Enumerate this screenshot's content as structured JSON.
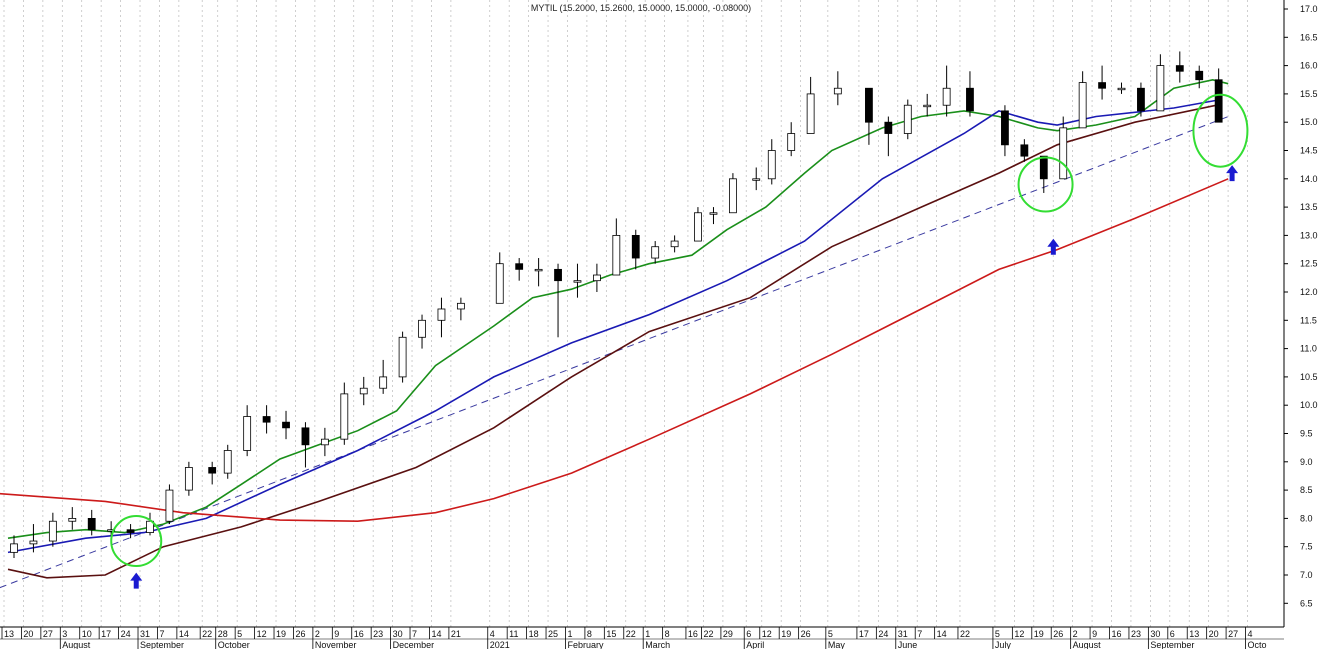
{
  "chart_data": {
    "type": "candlestick",
    "title": "MYTIL (15.2000, 15.2600, 15.0000, 15.0000, -0.08000)",
    "ylim": [
      6.3,
      17.1
    ],
    "y_ticks": [
      6.5,
      7.0,
      7.5,
      8.0,
      8.5,
      9.0,
      9.5,
      10.0,
      10.5,
      11.0,
      11.5,
      12.0,
      12.5,
      13.0,
      13.5,
      14.0,
      14.5,
      15.0,
      15.5,
      16.0,
      16.5,
      17.0
    ],
    "y_axis_position": "right",
    "grid": "vertical dotted",
    "x_ticks": [
      [
        "2020-07-13",
        "13"
      ],
      [
        "2020-07-20",
        "20"
      ],
      [
        "2020-07-27",
        "27"
      ],
      [
        "2020-08-03",
        "3"
      ],
      [
        "2020-08-10",
        "10"
      ],
      [
        "2020-08-17",
        "17"
      ],
      [
        "2020-08-24",
        "24"
      ],
      [
        "2020-08-31",
        "31"
      ],
      [
        "2020-09-07",
        "7"
      ],
      [
        "2020-09-14",
        "14"
      ],
      [
        "2020-09-22",
        "22"
      ],
      [
        "2020-09-28",
        "28"
      ],
      [
        "2020-10-05",
        "5"
      ],
      [
        "2020-10-12",
        "12"
      ],
      [
        "2020-10-19",
        "19"
      ],
      [
        "2020-10-26",
        "26"
      ],
      [
        "2020-11-02",
        "2"
      ],
      [
        "2020-11-09",
        "9"
      ],
      [
        "2020-11-16",
        "16"
      ],
      [
        "2020-11-23",
        "23"
      ],
      [
        "2020-11-30",
        "30"
      ],
      [
        "2020-12-07",
        "7"
      ],
      [
        "2020-12-14",
        "14"
      ],
      [
        "2020-12-21",
        "21"
      ],
      [
        "2021-01-04",
        "4"
      ],
      [
        "2021-01-11",
        "11"
      ],
      [
        "2021-01-18",
        "18"
      ],
      [
        "2021-01-25",
        "25"
      ],
      [
        "2021-02-01",
        "1"
      ],
      [
        "2021-02-08",
        "8"
      ],
      [
        "2021-02-15",
        "15"
      ],
      [
        "2021-02-22",
        "22"
      ],
      [
        "2021-03-01",
        "1"
      ],
      [
        "2021-03-08",
        "8"
      ],
      [
        "2021-03-16",
        "16"
      ],
      [
        "2021-03-22",
        "22"
      ],
      [
        "2021-03-29",
        "29"
      ],
      [
        "2021-04-06",
        "6"
      ],
      [
        "2021-04-12",
        "12"
      ],
      [
        "2021-04-19",
        "19"
      ],
      [
        "2021-04-26",
        "26"
      ],
      [
        "2021-05-05",
        "5"
      ],
      [
        "2021-05-17",
        "17"
      ],
      [
        "2021-05-24",
        "24"
      ],
      [
        "2021-05-31",
        "31"
      ],
      [
        "2021-06-07",
        "7"
      ],
      [
        "2021-06-14",
        "14"
      ],
      [
        "2021-06-22",
        "22"
      ],
      [
        "2021-07-05",
        "5"
      ],
      [
        "2021-07-12",
        "12"
      ],
      [
        "2021-07-19",
        "19"
      ],
      [
        "2021-07-26",
        "26"
      ],
      [
        "2021-08-02",
        "2"
      ],
      [
        "2021-08-09",
        "9"
      ],
      [
        "2021-08-16",
        "16"
      ],
      [
        "2021-08-23",
        "23"
      ],
      [
        "2021-08-30",
        "30"
      ],
      [
        "2021-09-06",
        "6"
      ],
      [
        "2021-09-13",
        "13"
      ],
      [
        "2021-09-20",
        "20"
      ],
      [
        "2021-09-27",
        "27"
      ],
      [
        "2021-10-04",
        "4"
      ]
    ],
    "month_labels": [
      [
        "2020-08-03",
        "August"
      ],
      [
        "2020-08-31",
        "September"
      ],
      [
        "2020-09-28",
        "October"
      ],
      [
        "2020-11-02",
        "November"
      ],
      [
        "2020-11-30",
        "December"
      ],
      [
        "2021-01-04",
        "2021"
      ],
      [
        "2021-02-01",
        "February"
      ],
      [
        "2021-03-01",
        "March"
      ],
      [
        "2021-04-06",
        "April"
      ],
      [
        "2021-05-05",
        "May"
      ],
      [
        "2021-05-31",
        "June"
      ],
      [
        "2021-07-05",
        "July"
      ],
      [
        "2021-08-02",
        "August"
      ],
      [
        "2021-08-30",
        "September"
      ],
      [
        "2021-10-04",
        "Octo"
      ]
    ],
    "candles": [
      [
        "2020-07-13",
        7.4,
        7.7,
        7.3,
        7.55
      ],
      [
        "2020-07-20",
        7.55,
        7.9,
        7.4,
        7.6
      ],
      [
        "2020-07-27",
        7.6,
        8.1,
        7.5,
        7.95
      ],
      [
        "2020-08-03",
        7.95,
        8.2,
        7.8,
        8.0
      ],
      [
        "2020-08-10",
        8.0,
        8.15,
        7.7,
        7.8
      ],
      [
        "2020-08-17",
        7.8,
        7.95,
        7.65,
        7.8
      ],
      [
        "2020-08-24",
        7.8,
        7.9,
        7.65,
        7.75
      ],
      [
        "2020-08-31",
        7.75,
        8.1,
        7.7,
        7.95
      ],
      [
        "2020-09-07",
        7.95,
        8.6,
        7.9,
        8.5
      ],
      [
        "2020-09-14",
        8.5,
        9.0,
        8.4,
        8.9
      ],
      [
        "2020-09-22",
        8.9,
        9.0,
        8.6,
        8.8
      ],
      [
        "2020-09-28",
        8.8,
        9.3,
        8.7,
        9.2
      ],
      [
        "2020-10-05",
        9.2,
        10.0,
        9.1,
        9.8
      ],
      [
        "2020-10-12",
        9.8,
        10.0,
        9.5,
        9.7
      ],
      [
        "2020-10-19",
        9.7,
        9.9,
        9.4,
        9.6
      ],
      [
        "2020-10-26",
        9.6,
        9.7,
        8.9,
        9.3
      ],
      [
        "2020-11-02",
        9.3,
        9.6,
        9.1,
        9.4
      ],
      [
        "2020-11-09",
        9.4,
        10.4,
        9.3,
        10.2
      ],
      [
        "2020-11-16",
        10.2,
        10.5,
        10.0,
        10.3
      ],
      [
        "2020-11-23",
        10.3,
        10.8,
        10.2,
        10.5
      ],
      [
        "2020-11-30",
        10.5,
        11.3,
        10.4,
        11.2
      ],
      [
        "2020-12-07",
        11.2,
        11.6,
        11.0,
        11.5
      ],
      [
        "2020-12-14",
        11.5,
        11.9,
        11.2,
        11.7
      ],
      [
        "2020-12-21",
        11.7,
        11.9,
        11.5,
        11.8
      ],
      [
        "2021-01-04",
        11.8,
        12.7,
        11.8,
        12.5
      ],
      [
        "2021-01-11",
        12.5,
        12.6,
        12.2,
        12.4
      ],
      [
        "2021-01-18",
        12.4,
        12.6,
        12.1,
        12.4
      ],
      [
        "2021-01-25",
        12.4,
        12.5,
        11.2,
        12.2
      ],
      [
        "2021-02-01",
        12.2,
        12.5,
        11.9,
        12.2
      ],
      [
        "2021-02-08",
        12.2,
        12.5,
        12.0,
        12.3
      ],
      [
        "2021-02-15",
        12.3,
        13.3,
        12.3,
        13.0
      ],
      [
        "2021-02-22",
        13.0,
        13.1,
        12.4,
        12.6
      ],
      [
        "2021-03-01",
        12.6,
        12.9,
        12.5,
        12.8
      ],
      [
        "2021-03-08",
        12.8,
        13.0,
        12.7,
        12.9
      ],
      [
        "2021-03-16",
        12.9,
        13.5,
        12.9,
        13.4
      ],
      [
        "2021-03-22",
        13.4,
        13.5,
        13.2,
        13.4
      ],
      [
        "2021-03-29",
        13.4,
        14.1,
        13.4,
        14.0
      ],
      [
        "2021-04-06",
        14.0,
        14.2,
        13.8,
        14.0
      ],
      [
        "2021-04-12",
        14.0,
        14.7,
        13.9,
        14.5
      ],
      [
        "2021-04-19",
        14.5,
        15.0,
        14.4,
        14.8
      ],
      [
        "2021-04-26",
        14.8,
        15.8,
        14.8,
        15.5
      ],
      [
        "2021-05-05",
        15.5,
        15.9,
        15.3,
        15.6
      ],
      [
        "2021-05-17",
        15.6,
        15.6,
        14.6,
        15.0
      ],
      [
        "2021-05-24",
        15.0,
        15.1,
        14.4,
        14.8
      ],
      [
        "2021-05-31",
        14.8,
        15.4,
        14.7,
        15.3
      ],
      [
        "2021-06-07",
        15.3,
        15.5,
        15.1,
        15.3
      ],
      [
        "2021-06-14",
        15.3,
        16.0,
        15.1,
        15.6
      ],
      [
        "2021-06-22",
        15.6,
        15.9,
        15.1,
        15.2
      ],
      [
        "2021-07-05",
        15.2,
        15.3,
        14.4,
        14.6
      ],
      [
        "2021-07-12",
        14.6,
        14.7,
        14.3,
        14.4
      ],
      [
        "2021-07-19",
        14.4,
        14.4,
        13.75,
        14.0
      ],
      [
        "2021-07-26",
        14.0,
        15.1,
        14.0,
        14.9
      ],
      [
        "2021-08-02",
        14.9,
        15.9,
        14.9,
        15.7
      ],
      [
        "2021-08-09",
        15.7,
        16.0,
        15.4,
        15.6
      ],
      [
        "2021-08-16",
        15.6,
        15.7,
        15.5,
        15.6
      ],
      [
        "2021-08-23",
        15.6,
        15.7,
        15.1,
        15.2
      ],
      [
        "2021-08-30",
        15.2,
        16.2,
        15.2,
        16.0
      ],
      [
        "2021-09-06",
        16.0,
        16.25,
        15.7,
        15.9
      ],
      [
        "2021-09-13",
        15.9,
        16.0,
        15.6,
        15.75
      ],
      [
        "2021-09-20",
        15.75,
        15.95,
        15.0,
        15.0
      ]
    ],
    "series": [
      {
        "color": "#1a8f1a",
        "values": [
          [
            "2020-07-13",
            7.65
          ],
          [
            "2020-07-27",
            7.75
          ],
          [
            "2020-08-10",
            7.8
          ],
          [
            "2020-08-24",
            7.75
          ],
          [
            "2020-09-07",
            7.9
          ],
          [
            "2020-09-22",
            8.2
          ],
          [
            "2020-10-05",
            8.6
          ],
          [
            "2020-10-19",
            9.05
          ],
          [
            "2020-11-02",
            9.3
          ],
          [
            "2020-11-16",
            9.55
          ],
          [
            "2020-11-30",
            9.9
          ],
          [
            "2020-12-14",
            10.7
          ],
          [
            "2021-01-04",
            11.4
          ],
          [
            "2021-01-18",
            11.9
          ],
          [
            "2021-02-01",
            12.05
          ],
          [
            "2021-02-15",
            12.3
          ],
          [
            "2021-03-01",
            12.5
          ],
          [
            "2021-03-16",
            12.65
          ],
          [
            "2021-03-29",
            13.1
          ],
          [
            "2021-04-12",
            13.5
          ],
          [
            "2021-04-26",
            14.1
          ],
          [
            "2021-05-05",
            14.5
          ],
          [
            "2021-05-24",
            14.9
          ],
          [
            "2021-06-07",
            15.1
          ],
          [
            "2021-06-22",
            15.2
          ],
          [
            "2021-07-05",
            15.1
          ],
          [
            "2021-07-19",
            14.9
          ],
          [
            "2021-07-26",
            14.85
          ],
          [
            "2021-08-09",
            14.95
          ],
          [
            "2021-08-23",
            15.1
          ],
          [
            "2021-09-06",
            15.6
          ],
          [
            "2021-09-20",
            15.75
          ],
          [
            "2021-09-24",
            15.68
          ]
        ]
      },
      {
        "color": "#1a1ab4",
        "values": [
          [
            "2020-07-13",
            7.4
          ],
          [
            "2020-08-10",
            7.65
          ],
          [
            "2020-08-31",
            7.75
          ],
          [
            "2020-09-22",
            8.0
          ],
          [
            "2020-10-19",
            8.6
          ],
          [
            "2020-11-16",
            9.2
          ],
          [
            "2020-12-14",
            9.9
          ],
          [
            "2021-01-04",
            10.5
          ],
          [
            "2021-02-01",
            11.1
          ],
          [
            "2021-03-01",
            11.6
          ],
          [
            "2021-03-29",
            12.2
          ],
          [
            "2021-04-26",
            12.9
          ],
          [
            "2021-05-24",
            14.0
          ],
          [
            "2021-06-22",
            14.8
          ],
          [
            "2021-07-05",
            15.2
          ],
          [
            "2021-07-19",
            15.0
          ],
          [
            "2021-07-26",
            14.95
          ],
          [
            "2021-08-09",
            15.1
          ],
          [
            "2021-09-06",
            15.25
          ],
          [
            "2021-09-22",
            15.4
          ]
        ]
      },
      {
        "color": "#5a1010",
        "values": [
          [
            "2020-07-13",
            7.1
          ],
          [
            "2020-07-27",
            6.95
          ],
          [
            "2020-08-17",
            7.0
          ],
          [
            "2020-09-07",
            7.5
          ],
          [
            "2020-10-05",
            7.85
          ],
          [
            "2020-11-02",
            8.3
          ],
          [
            "2020-12-07",
            8.9
          ],
          [
            "2021-01-04",
            9.6
          ],
          [
            "2021-02-01",
            10.5
          ],
          [
            "2021-03-01",
            11.3
          ],
          [
            "2021-04-06",
            11.9
          ],
          [
            "2021-05-05",
            12.8
          ],
          [
            "2021-06-07",
            13.5
          ],
          [
            "2021-07-05",
            14.1
          ],
          [
            "2021-07-26",
            14.6
          ],
          [
            "2021-08-23",
            15.0
          ],
          [
            "2021-09-21",
            15.3
          ]
        ]
      },
      {
        "color": "#cc1a1a",
        "values": [
          [
            "2020-07-06",
            8.45
          ],
          [
            "2020-08-17",
            8.3
          ],
          [
            "2020-09-14",
            8.1
          ],
          [
            "2020-10-19",
            7.97
          ],
          [
            "2020-11-16",
            7.95
          ],
          [
            "2020-12-14",
            8.1
          ],
          [
            "2021-01-04",
            8.35
          ],
          [
            "2021-02-01",
            8.8
          ],
          [
            "2021-03-01",
            9.4
          ],
          [
            "2021-04-06",
            10.2
          ],
          [
            "2021-05-05",
            10.9
          ],
          [
            "2021-06-07",
            11.7
          ],
          [
            "2021-07-05",
            12.4
          ],
          [
            "2021-07-26",
            12.75
          ],
          [
            "2021-08-23",
            13.3
          ],
          [
            "2021-09-24",
            14.0
          ]
        ]
      }
    ],
    "trendline": {
      "color": "#3a3aa0",
      "style": "dashed",
      "from": [
        "2020-07-06",
        6.7
      ],
      "to": [
        "2021-09-24",
        15.1
      ]
    },
    "annotations": {
      "circles": [
        [
          "2020-08-27",
          7.6
        ],
        [
          "2021-07-21",
          13.9
        ],
        [
          "2021-09-22",
          14.85
        ]
      ],
      "circle_color": "#33dd33",
      "arrows": [
        [
          "2020-08-27",
          6.9
        ],
        [
          "2021-07-23",
          12.8
        ],
        [
          "2021-09-25",
          14.1
        ]
      ],
      "arrow_color": "#1a1ad0"
    }
  }
}
